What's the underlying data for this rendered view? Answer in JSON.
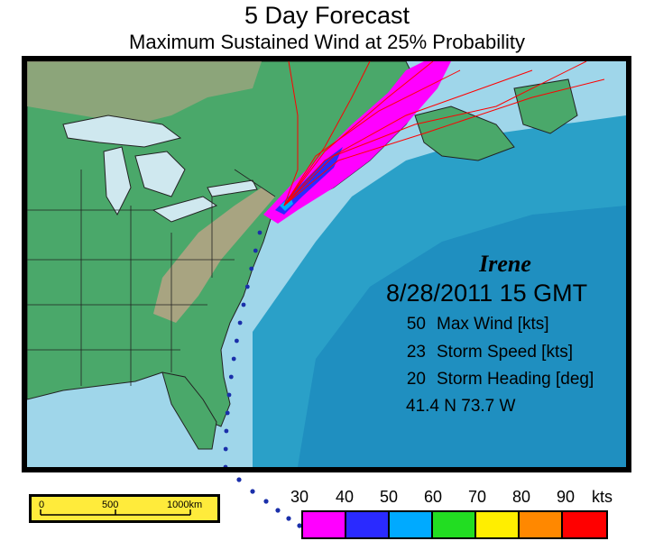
{
  "title": "5 Day Forecast",
  "subtitle": "Maximum Sustained Wind at 25% Probability",
  "storm": {
    "name": "Irene",
    "datetime": "8/28/2011  15 GMT",
    "lat_lon": "41.4 N  73.7 W",
    "stats": [
      {
        "value": "50",
        "label": "Max Wind [kts]"
      },
      {
        "value": "23",
        "label": "Storm Speed [kts]"
      },
      {
        "value": "20",
        "label": "Storm Heading [deg]"
      }
    ]
  },
  "scale": {
    "labels": [
      "0",
      "500",
      "1000km"
    ],
    "color": "#ffeb3b"
  },
  "legend": {
    "labels": [
      "30",
      "40",
      "50",
      "60",
      "70",
      "80",
      "90",
      "kts"
    ],
    "colors": [
      "#ff00ff",
      "#2a2aff",
      "#00aaff",
      "#22dd22",
      "#ffee00",
      "#ff8800",
      "#ff0000"
    ]
  },
  "colors": {
    "land": "#4aa86a",
    "highlands": "#b9a385",
    "deep_water": "#2aa0c8",
    "shelf_water": "#c8eef6",
    "track": "#1a2faa"
  }
}
